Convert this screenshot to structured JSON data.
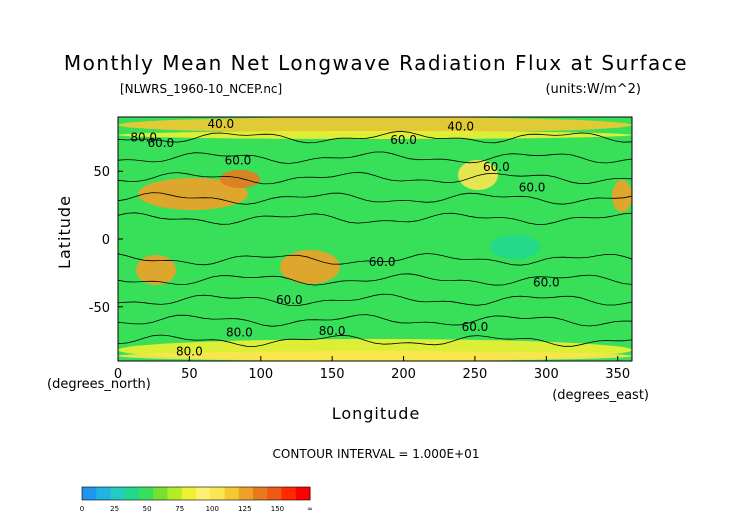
{
  "chart_data": {
    "type": "heatmap",
    "title": "Monthly Mean Net Longwave Radiation Flux at Surface",
    "source_label": "[NLWRS_1960-10_NCEP.nc]",
    "units_label": "(units:W/m^2)",
    "xlabel": "Longitude",
    "ylabel": "Latitude",
    "x_unit_label": "(degrees_east)",
    "y_unit_label": "(degrees_north)",
    "xlim": [
      0,
      360
    ],
    "ylim": [
      -90,
      90
    ],
    "x_ticks": [
      0,
      50,
      100,
      150,
      200,
      250,
      300,
      350
    ],
    "y_ticks": [
      50,
      0,
      -50
    ],
    "contour_interval_label": "CONTOUR INTERVAL = 1.000E+01",
    "contour_labels": [
      {
        "text": "80.0",
        "lon": 18,
        "lat": 72
      },
      {
        "text": "60.0",
        "lon": 30,
        "lat": 68
      },
      {
        "text": "40.0",
        "lon": 72,
        "lat": 82
      },
      {
        "text": "60.0",
        "lon": 84,
        "lat": 55
      },
      {
        "text": "60.0",
        "lon": 200,
        "lat": 70
      },
      {
        "text": "40.0",
        "lon": 240,
        "lat": 80
      },
      {
        "text": "60.0",
        "lon": 265,
        "lat": 50
      },
      {
        "text": "60.0",
        "lon": 290,
        "lat": 35
      },
      {
        "text": "60.0",
        "lon": 185,
        "lat": -20
      },
      {
        "text": "60.0",
        "lon": 120,
        "lat": -48
      },
      {
        "text": "60.0",
        "lon": 300,
        "lat": -35
      },
      {
        "text": "60.0",
        "lon": 250,
        "lat": -68
      },
      {
        "text": "80.0",
        "lon": 85,
        "lat": -72
      },
      {
        "text": "80.0",
        "lon": 150,
        "lat": -71
      },
      {
        "text": "80.0",
        "lon": 50,
        "lat": -86
      }
    ],
    "colorbar": {
      "tick_labels": [
        "0",
        "25",
        "50",
        "75",
        "100",
        "125",
        "150",
        "∞"
      ],
      "colors": [
        "#1e96f0",
        "#22b4e0",
        "#22ccc0",
        "#22d88c",
        "#38e05a",
        "#78e030",
        "#b4ec28",
        "#eef032",
        "#fff070",
        "#fae650",
        "#f5c832",
        "#f0a028",
        "#e87a1e",
        "#ee5a14",
        "#ff2a00",
        "#ff0000"
      ]
    }
  }
}
